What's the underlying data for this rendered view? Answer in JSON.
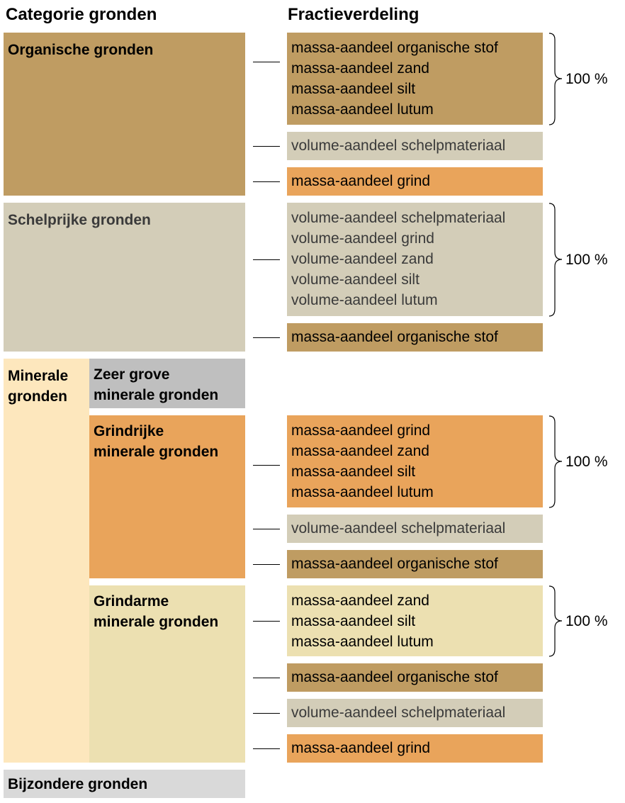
{
  "headers": {
    "categories": "Categorie gronden",
    "fractions": "Fractieverdeling"
  },
  "colors": {
    "organic": "#bf9c62",
    "shell": "#d3cdb8",
    "gravel": "#e9a45b",
    "mineral_outer": "#fde7bd",
    "very_coarse": "#bfbfbf",
    "gravel_poor": "#ece0b1",
    "special": "#d9d9d9"
  },
  "categories": {
    "organisch": "Organische gronden",
    "schelprijk": "Schelprijke gronden",
    "mineraal_1": "Minerale",
    "mineraal_2": "gronden",
    "zeer_grove_1": "Zeer grove",
    "zeer_grove_2": "minerale gronden",
    "grindrijk_1": "Grindrijke",
    "grindrijk_2": "minerale gronden",
    "grindarm_1": "Grindarme",
    "grindarm_2": "minerale gronden",
    "bijzonder": "Bijzondere gronden"
  },
  "fractions": {
    "org_main": [
      "massa-aandeel organische stof",
      "massa-aandeel zand",
      "massa-aandeel silt",
      "massa-aandeel lutum"
    ],
    "org_shell": "volume-aandeel schelpmateriaal",
    "org_gravel": "massa-aandeel grind",
    "shell_main": [
      "volume-aandeel schelpmateriaal",
      "volume-aandeel grind",
      "volume-aandeel zand",
      "volume-aandeel silt",
      "volume-aandeel lutum"
    ],
    "shell_org": "massa-aandeel organische stof",
    "gr_main": [
      "massa-aandeel grind",
      "massa-aandeel zand",
      "massa-aandeel silt",
      "massa-aandeel lutum"
    ],
    "gr_shell": "volume-aandeel schelpmateriaal",
    "gr_org": "massa-aandeel organische stof",
    "ga_main": [
      "massa-aandeel zand",
      "massa-aandeel silt",
      "massa-aandeel lutum"
    ],
    "ga_org": "massa-aandeel organische stof",
    "ga_shell": "volume-aandeel schelpmateriaal",
    "ga_gravel": "massa-aandeel grind"
  },
  "percent_label": "100 %"
}
